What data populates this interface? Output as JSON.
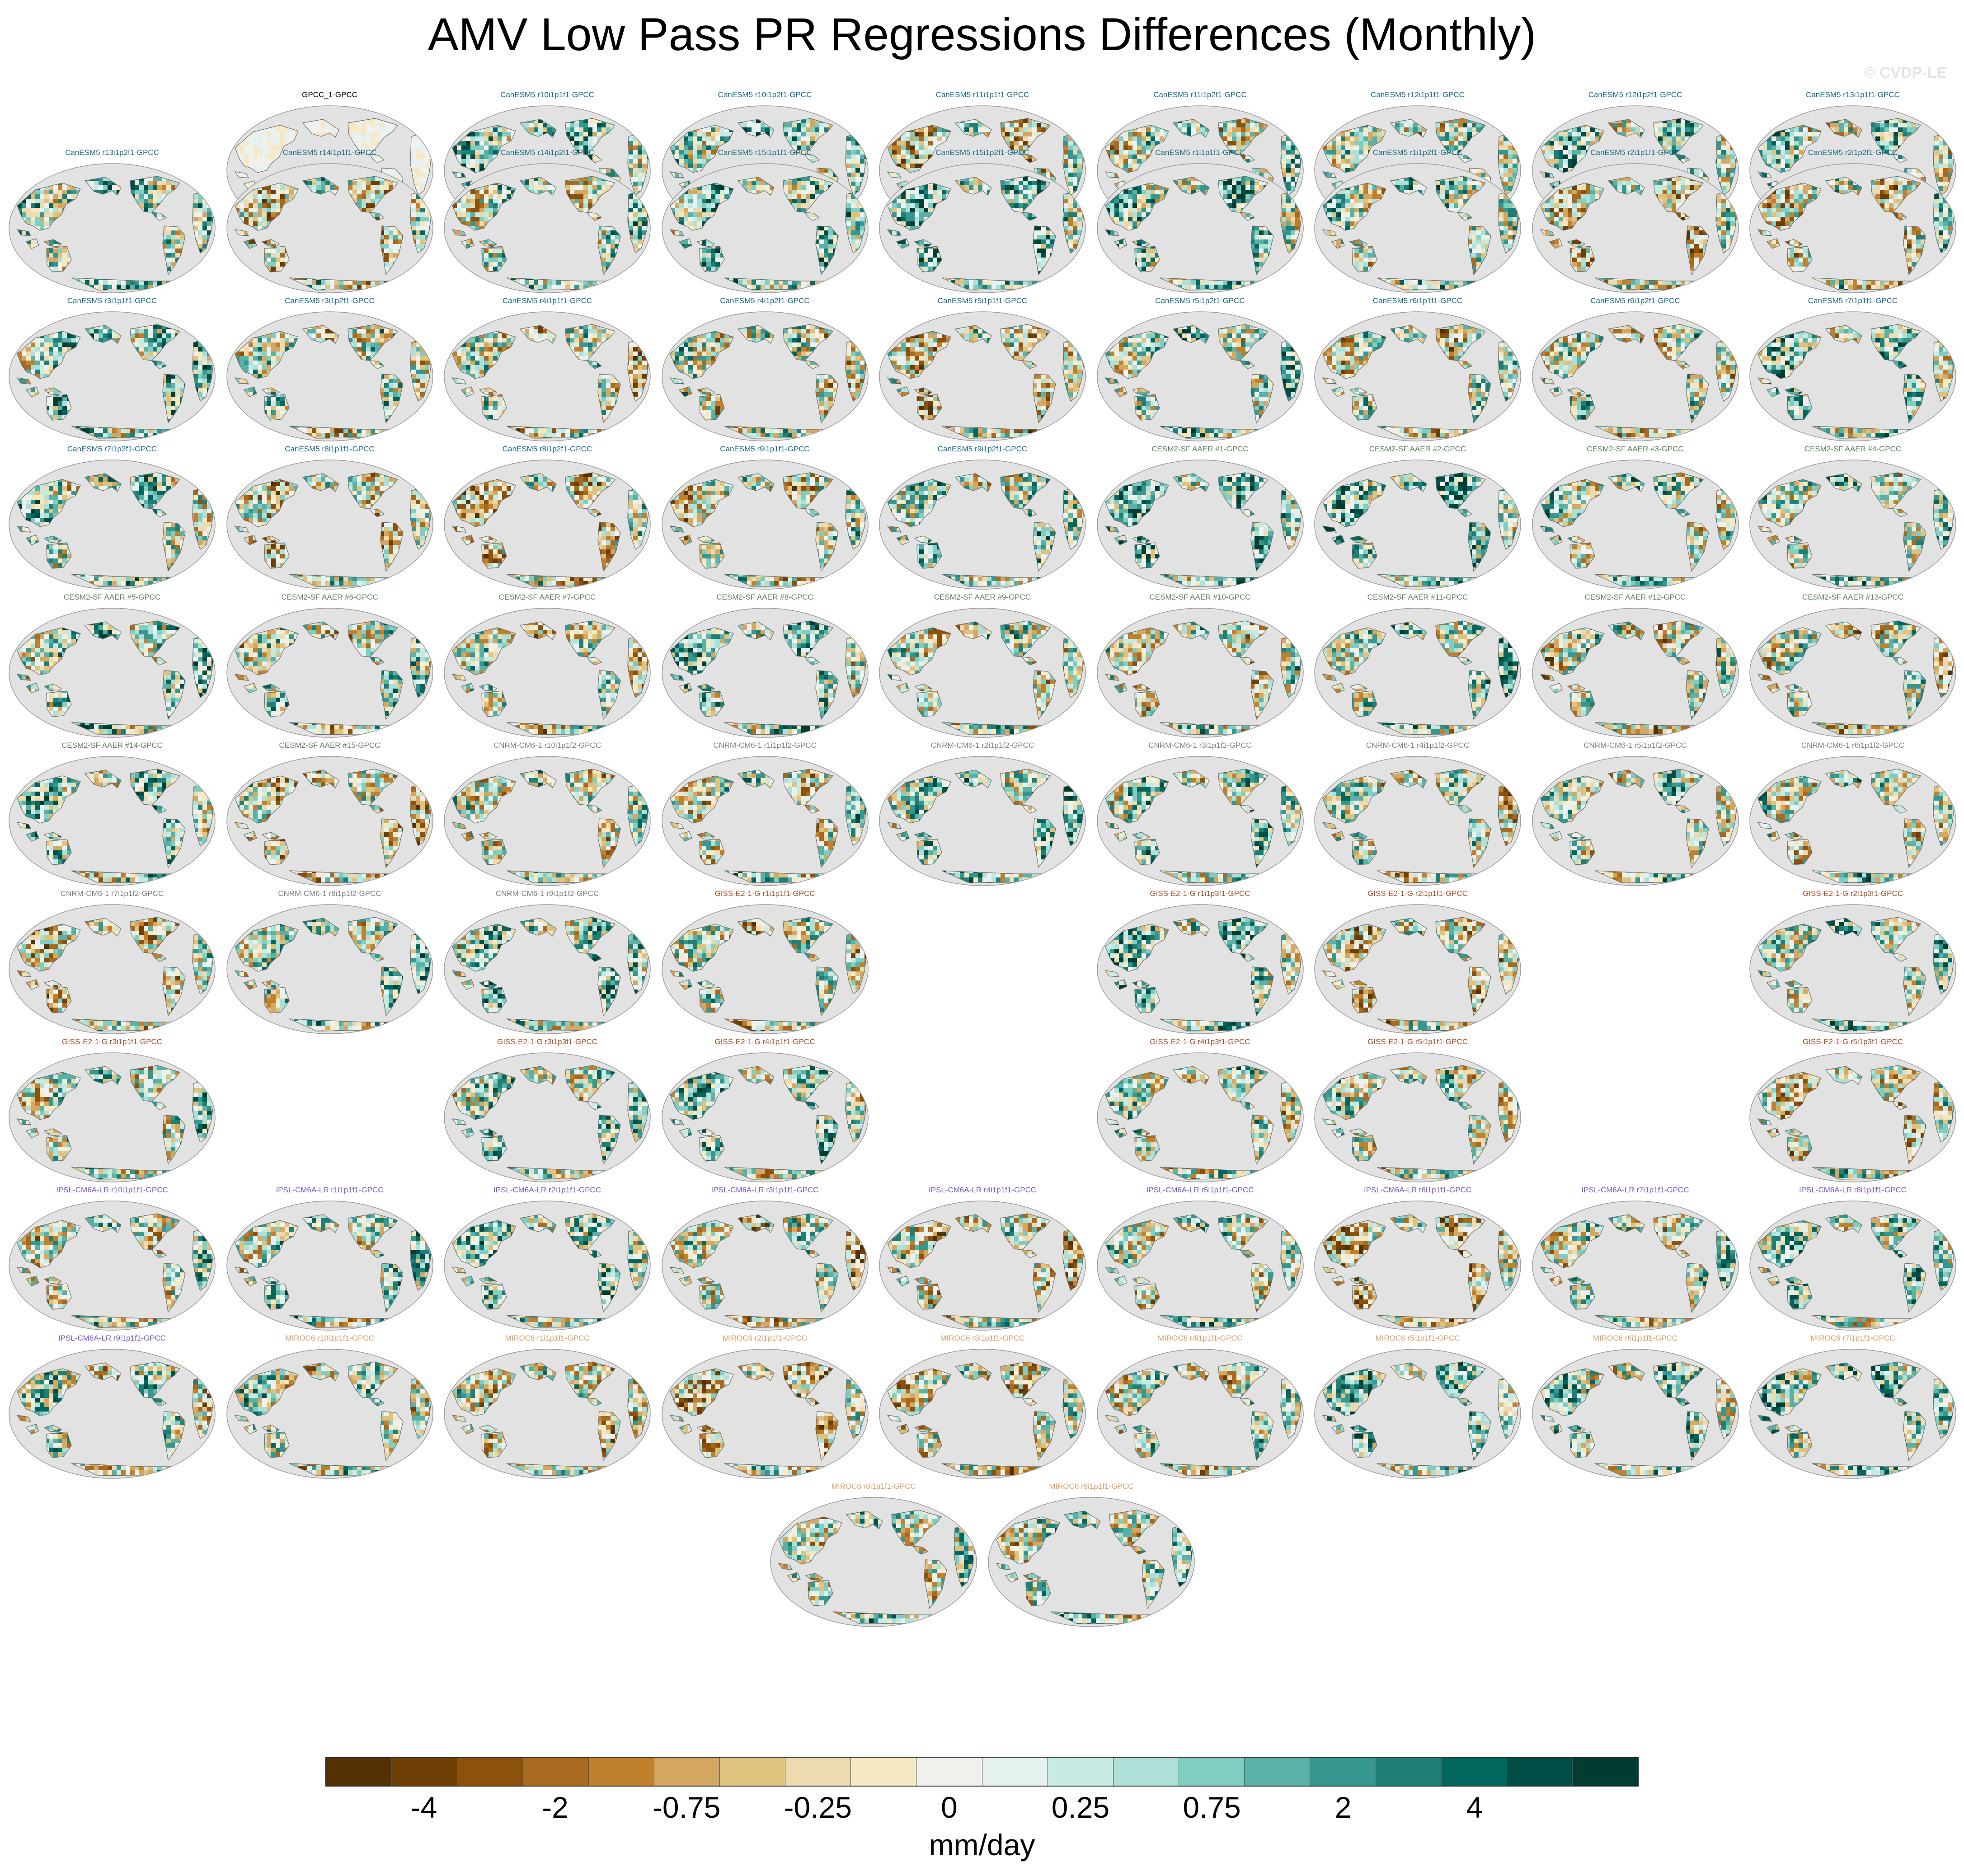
{
  "title": "AMV Low Pass PR Regressions Differences (Monthly)",
  "watermark": "© CVDP-LE",
  "colors": {
    "GPCC": "#000000",
    "CanESM5": "#1a6b87",
    "CESM2": "#5f7f5f",
    "CNRM": "#808080",
    "GISS": "#a0522d",
    "IPSL": "#7b55c9",
    "MIROC": "#d9a068",
    "ocean": "#e2e2e2",
    "coast": "#6a6a6a"
  },
  "panels": [
    {
      "label": "GPCC_1-GPCC",
      "group": "GPCC",
      "row": 0,
      "col": 1
    },
    {
      "label": "CanESM5 r10i1p1f1-GPCC",
      "group": "CanESM5",
      "row": 0,
      "col": 2
    },
    {
      "label": "CanESM5 r10i1p2f1-GPCC",
      "group": "CanESM5",
      "row": 0,
      "col": 3
    },
    {
      "label": "CanESM5 r11i1p1f1-GPCC",
      "group": "CanESM5",
      "row": 0,
      "col": 4
    },
    {
      "label": "CanESM5 r11i1p2f1-GPCC",
      "group": "CanESM5",
      "row": 0,
      "col": 5
    },
    {
      "label": "CanESM5 r12i1p1f1-GPCC",
      "group": "CanESM5",
      "row": 0,
      "col": 6
    },
    {
      "label": "CanESM5 r12i1p2f1-GPCC",
      "group": "CanESM5",
      "row": 0,
      "col": 7
    },
    {
      "label": "CanESM5 r13i1p1f1-GPCC",
      "group": "CanESM5",
      "row": 0,
      "col": 8
    },
    {
      "label": "CanESM5 r13i1p2f1-GPCC",
      "group": "CanESM5",
      "row": 1,
      "col": 0
    },
    {
      "label": "CanESM5 r14i1p1f1-GPCC",
      "group": "CanESM5",
      "row": 1,
      "col": 1
    },
    {
      "label": "CanESM5 r14i1p2f1-GPCC",
      "group": "CanESM5",
      "row": 1,
      "col": 2
    },
    {
      "label": "CanESM5 r15i1p1f1-GPCC",
      "group": "CanESM5",
      "row": 1,
      "col": 3
    },
    {
      "label": "CanESM5 r15i1p2f1-GPCC",
      "group": "CanESM5",
      "row": 1,
      "col": 4
    },
    {
      "label": "CanESM5 r1i1p1f1-GPCC",
      "group": "CanESM5",
      "row": 1,
      "col": 5
    },
    {
      "label": "CanESM5 r1i1p2f1-GPCC",
      "group": "CanESM5",
      "row": 1,
      "col": 6
    },
    {
      "label": "CanESM5 r2i1p1f1-GPCC",
      "group": "CanESM5",
      "row": 1,
      "col": 7
    },
    {
      "label": "CanESM5 r2i1p2f1-GPCC",
      "group": "CanESM5",
      "row": 1,
      "col": 8
    },
    {
      "label": "CanESM5 r3i1p1f1-GPCC",
      "group": "CanESM5",
      "row": 2,
      "col": 0
    },
    {
      "label": "CanESM5 r3i1p2f1-GPCC",
      "group": "CanESM5",
      "row": 2,
      "col": 1
    },
    {
      "label": "CanESM5 r4i1p1f1-GPCC",
      "group": "CanESM5",
      "row": 2,
      "col": 2
    },
    {
      "label": "CanESM5 r4i1p2f1-GPCC",
      "group": "CanESM5",
      "row": 2,
      "col": 3
    },
    {
      "label": "CanESM5 r5i1p1f1-GPCC",
      "group": "CanESM5",
      "row": 2,
      "col": 4
    },
    {
      "label": "CanESM5 r5i1p2f1-GPCC",
      "group": "CanESM5",
      "row": 2,
      "col": 5
    },
    {
      "label": "CanESM5 r6i1p1f1-GPCC",
      "group": "CanESM5",
      "row": 2,
      "col": 6
    },
    {
      "label": "CanESM5 r6i1p2f1-GPCC",
      "group": "CanESM5",
      "row": 2,
      "col": 7
    },
    {
      "label": "CanESM5 r7i1p1f1-GPCC",
      "group": "CanESM5",
      "row": 2,
      "col": 8
    },
    {
      "label": "CanESM5 r7i1p2f1-GPCC",
      "group": "CanESM5",
      "row": 3,
      "col": 0
    },
    {
      "label": "CanESM5 r8i1p1f1-GPCC",
      "group": "CanESM5",
      "row": 3,
      "col": 1
    },
    {
      "label": "CanESM5 r8i1p2f1-GPCC",
      "group": "CanESM5",
      "row": 3,
      "col": 2
    },
    {
      "label": "CanESM5 r9i1p1f1-GPCC",
      "group": "CanESM5",
      "row": 3,
      "col": 3
    },
    {
      "label": "CanESM5 r9i1p2f1-GPCC",
      "group": "CanESM5",
      "row": 3,
      "col": 4
    },
    {
      "label": "CESM2-SF AAER #1-GPCC",
      "group": "CESM2",
      "row": 3,
      "col": 5
    },
    {
      "label": "CESM2-SF AAER #2-GPCC",
      "group": "CESM2",
      "row": 3,
      "col": 6
    },
    {
      "label": "CESM2-SF AAER #3-GPCC",
      "group": "CESM2",
      "row": 3,
      "col": 7
    },
    {
      "label": "CESM2-SF AAER #4-GPCC",
      "group": "CESM2",
      "row": 3,
      "col": 8
    },
    {
      "label": "CESM2-SF AAER #5-GPCC",
      "group": "CESM2",
      "row": 4,
      "col": 0
    },
    {
      "label": "CESM2-SF AAER #6-GPCC",
      "group": "CESM2",
      "row": 4,
      "col": 1
    },
    {
      "label": "CESM2-SF AAER #7-GPCC",
      "group": "CESM2",
      "row": 4,
      "col": 2
    },
    {
      "label": "CESM2-SF AAER #8-GPCC",
      "group": "CESM2",
      "row": 4,
      "col": 3
    },
    {
      "label": "CESM2-SF AAER #9-GPCC",
      "group": "CESM2",
      "row": 4,
      "col": 4
    },
    {
      "label": "CESM2-SF AAER #10-GPCC",
      "group": "CESM2",
      "row": 4,
      "col": 5
    },
    {
      "label": "CESM2-SF AAER #11-GPCC",
      "group": "CESM2",
      "row": 4,
      "col": 6
    },
    {
      "label": "CESM2-SF AAER #12-GPCC",
      "group": "CESM2",
      "row": 4,
      "col": 7
    },
    {
      "label": "CESM2-SF AAER #13-GPCC",
      "group": "CESM2",
      "row": 4,
      "col": 8
    },
    {
      "label": "CESM2-SF AAER #14-GPCC",
      "group": "CESM2",
      "row": 5,
      "col": 0
    },
    {
      "label": "CESM2-SF AAER #15-GPCC",
      "group": "CESM2",
      "row": 5,
      "col": 1
    },
    {
      "label": "CNRM-CM6-1 r10i1p1f2-GPCC",
      "group": "CNRM",
      "row": 5,
      "col": 2
    },
    {
      "label": "CNRM-CM6-1 r1i1p1f2-GPCC",
      "group": "CNRM",
      "row": 5,
      "col": 3
    },
    {
      "label": "CNRM-CM6-1 r2i1p1f2-GPCC",
      "group": "CNRM",
      "row": 5,
      "col": 4
    },
    {
      "label": "CNRM-CM6-1 r3i1p1f2-GPCC",
      "group": "CNRM",
      "row": 5,
      "col": 5
    },
    {
      "label": "CNRM-CM6-1 r4i1p1f2-GPCC",
      "group": "CNRM",
      "row": 5,
      "col": 6
    },
    {
      "label": "CNRM-CM6-1 r5i1p1f2-GPCC",
      "group": "CNRM",
      "row": 5,
      "col": 7
    },
    {
      "label": "CNRM-CM6-1 r6i1p1f2-GPCC",
      "group": "CNRM",
      "row": 5,
      "col": 8
    },
    {
      "label": "CNRM-CM6-1 r7i1p1f2-GPCC",
      "group": "CNRM",
      "row": 6,
      "col": 0
    },
    {
      "label": "CNRM-CM6-1 r8i1p1f2-GPCC",
      "group": "CNRM",
      "row": 6,
      "col": 1
    },
    {
      "label": "CNRM-CM6-1 r9i1p1f2-GPCC",
      "group": "CNRM",
      "row": 6,
      "col": 2
    },
    {
      "label": "GISS-E2-1-G r1i1p1f1-GPCC",
      "group": "GISS",
      "row": 6,
      "col": 3
    },
    {
      "label": "GISS-E2-1-G r1i1p3f1-GPCC",
      "group": "GISS",
      "row": 6,
      "col": 5
    },
    {
      "label": "GISS-E2-1-G r2i1p1f1-GPCC",
      "group": "GISS",
      "row": 6,
      "col": 6
    },
    {
      "label": "GISS-E2-1-G r2i1p3f1-GPCC",
      "group": "GISS",
      "row": 6,
      "col": 8
    },
    {
      "label": "GISS-E2-1-G r3i1p1f1-GPCC",
      "group": "GISS",
      "row": 7,
      "col": 0
    },
    {
      "label": "GISS-E2-1-G r3i1p3f1-GPCC",
      "group": "GISS",
      "row": 7,
      "col": 2
    },
    {
      "label": "GISS-E2-1-G r4i1p1f1-GPCC",
      "group": "GISS",
      "row": 7,
      "col": 3
    },
    {
      "label": "GISS-E2-1-G r4i1p3f1-GPCC",
      "group": "GISS",
      "row": 7,
      "col": 5
    },
    {
      "label": "GISS-E2-1-G r5i1p1f1-GPCC",
      "group": "GISS",
      "row": 7,
      "col": 6
    },
    {
      "label": "GISS-E2-1-G r5i1p3f1-GPCC",
      "group": "GISS",
      "row": 7,
      "col": 8
    },
    {
      "label": "IPSL-CM6A-LR r10i1p1f1-GPCC",
      "group": "IPSL",
      "row": 8,
      "col": 0
    },
    {
      "label": "IPSL-CM6A-LR r1i1p1f1-GPCC",
      "group": "IPSL",
      "row": 8,
      "col": 1
    },
    {
      "label": "IPSL-CM6A-LR r2i1p1f1-GPCC",
      "group": "IPSL",
      "row": 8,
      "col": 2
    },
    {
      "label": "IPSL-CM6A-LR r3i1p1f1-GPCC",
      "group": "IPSL",
      "row": 8,
      "col": 3
    },
    {
      "label": "IPSL-CM6A-LR r4i1p1f1-GPCC",
      "group": "IPSL",
      "row": 8,
      "col": 4
    },
    {
      "label": "IPSL-CM6A-LR r5i1p1f1-GPCC",
      "group": "IPSL",
      "row": 8,
      "col": 5
    },
    {
      "label": "IPSL-CM6A-LR r6i1p1f1-GPCC",
      "group": "IPSL",
      "row": 8,
      "col": 6
    },
    {
      "label": "IPSL-CM6A-LR r7i1p1f1-GPCC",
      "group": "IPSL",
      "row": 8,
      "col": 7
    },
    {
      "label": "IPSL-CM6A-LR r8i1p1f1-GPCC",
      "group": "IPSL",
      "row": 8,
      "col": 8
    },
    {
      "label": "IPSL-CM6A-LR r9i1p1f1-GPCC",
      "group": "IPSL",
      "row": 9,
      "col": 0
    },
    {
      "label": "MIROC6 r10i1p1f1-GPCC",
      "group": "MIROC",
      "row": 9,
      "col": 1
    },
    {
      "label": "MIROC6 r1i1p1f1-GPCC",
      "group": "MIROC",
      "row": 9,
      "col": 2
    },
    {
      "label": "MIROC6 r2i1p1f1-GPCC",
      "group": "MIROC",
      "row": 9,
      "col": 3
    },
    {
      "label": "MIROC6 r3i1p1f1-GPCC",
      "group": "MIROC",
      "row": 9,
      "col": 4
    },
    {
      "label": "MIROC6 r4i1p1f1-GPCC",
      "group": "MIROC",
      "row": 9,
      "col": 5
    },
    {
      "label": "MIROC6 r5i1p1f1-GPCC",
      "group": "MIROC",
      "row": 9,
      "col": 6
    },
    {
      "label": "MIROC6 r6i1p1f1-GPCC",
      "group": "MIROC",
      "row": 9,
      "col": 7
    },
    {
      "label": "MIROC6 r7i1p1f1-GPCC",
      "group": "MIROC",
      "row": 9,
      "col": 8
    },
    {
      "label": "MIROC6 r8i1p1f1-GPCC",
      "group": "MIROC",
      "row": 10,
      "col": 3.5
    },
    {
      "label": "MIROC6 r9i1p1f1-GPCC",
      "group": "MIROC",
      "row": 10,
      "col": 4.5
    }
  ],
  "colorbar": {
    "colors": [
      "#543005",
      "#6e3e07",
      "#8c510a",
      "#a86a1f",
      "#bf812d",
      "#d4a862",
      "#dfc27d",
      "#eddab0",
      "#f6e8c3",
      "#f2f0ec",
      "#e6f2f0",
      "#c7eae5",
      "#ade0d6",
      "#80cdc1",
      "#5bb1a6",
      "#35978f",
      "#1f7f76",
      "#01665e",
      "#024d45",
      "#003c30"
    ],
    "labels": [
      "-4",
      "-2",
      "-0.75",
      "-0.25",
      "0",
      "0.25",
      "0.75",
      "2",
      "4"
    ],
    "label_boundaries": [
      2,
      4,
      6,
      8,
      10,
      12,
      14,
      16,
      18
    ],
    "units": "mm/day"
  }
}
